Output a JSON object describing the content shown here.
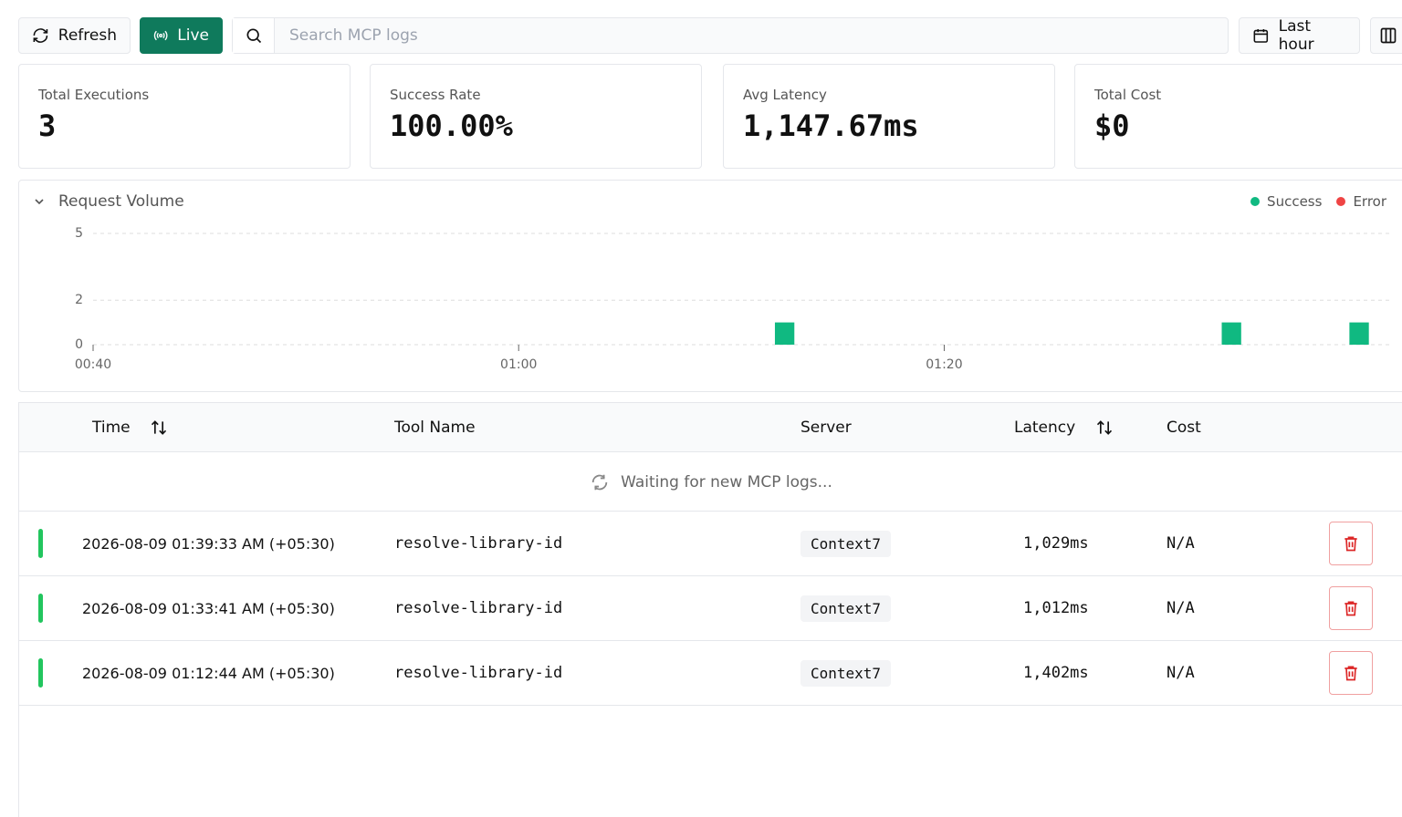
{
  "toolbar": {
    "refresh": "Refresh",
    "live": "Live",
    "search_placeholder": "Search MCP logs",
    "time_range": "Last hour"
  },
  "stats": [
    {
      "label": "Total Executions",
      "value": "3"
    },
    {
      "label": "Success Rate",
      "value": "100.00%"
    },
    {
      "label": "Avg Latency",
      "value": "1,147.67ms"
    },
    {
      "label": "Total Cost",
      "value": "$0"
    }
  ],
  "chart_data": {
    "type": "bar",
    "title": "Request Volume",
    "x": [
      "01:12",
      "01:33",
      "01:39"
    ],
    "series": [
      {
        "name": "Success",
        "color": "#10b981",
        "values": [
          1,
          1,
          1
        ]
      },
      {
        "name": "Error",
        "color": "#ef4444",
        "values": [
          0,
          0,
          0
        ]
      }
    ],
    "stacked": true,
    "xlim": [
      "00:40",
      "01:41"
    ],
    "xticks": [
      "00:40",
      "01:00",
      "01:20"
    ],
    "ylim": [
      0,
      5
    ],
    "yticks": [
      0,
      2,
      5
    ],
    "grid": true,
    "legend": "top-right"
  },
  "table": {
    "columns": [
      "Time",
      "Tool Name",
      "Server",
      "Latency",
      "Cost"
    ],
    "waiting": "Waiting for new MCP logs...",
    "rows": [
      [
        "2026-08-09 01:39:33 AM (+05:30)",
        "resolve-library-id",
        "Context7",
        "1,029ms",
        "N/A"
      ],
      [
        "2026-08-09 01:33:41 AM (+05:30)",
        "resolve-library-id",
        "Context7",
        "1,012ms",
        "N/A"
      ],
      [
        "2026-08-09 01:12:44 AM (+05:30)",
        "resolve-library-id",
        "Context7",
        "1,402ms",
        "N/A"
      ]
    ]
  }
}
